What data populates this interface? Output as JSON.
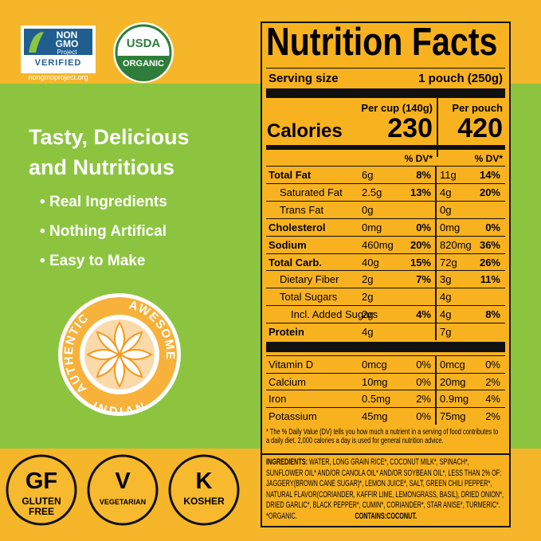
{
  "badges": {
    "nongmo": {
      "line1": "NON",
      "line2": "GMO",
      "line3": "Project",
      "line4": "VERIFIED",
      "url": "nongmoproject.org"
    },
    "usda": {
      "line1": "USDA",
      "line2": "ORGANIC"
    }
  },
  "headline": {
    "line1": "Tasty, Delicious",
    "line2": "and Nutritious"
  },
  "bullets": [
    "Real Ingredients",
    "Nothing Artifical",
    "Easy to Make"
  ],
  "seal": {
    "left": "AUTHENTIC",
    "right": "AWESOME",
    "bottom": "INDIAN"
  },
  "diet_badges": [
    {
      "mark": "GF",
      "line1": "GLUTEN",
      "line2": "FREE"
    },
    {
      "mark": "V",
      "line1": "VEGETARIAN",
      "line2": null
    },
    {
      "mark": "K",
      "line1": "KOSHER",
      "line2": null
    }
  ],
  "nutrition": {
    "title": "Nutrition Facts",
    "serving_label": "Serving size",
    "serving_value": "1 pouch (250g)",
    "col1_header": "Per cup (140g)",
    "col2_header": "Per pouch",
    "calories_label": "Calories",
    "calories": [
      "230",
      "420"
    ],
    "dv_header": "% DV*",
    "rows": [
      {
        "name": "Total Fat",
        "a1": "6g",
        "d1": "8%",
        "a2": "11g",
        "d2": "14%",
        "bold": true,
        "level": 0
      },
      {
        "name": "Saturated Fat",
        "a1": "2.5g",
        "d1": "13%",
        "a2": "4g",
        "d2": "20%",
        "bold": false,
        "level": 1
      },
      {
        "name": "Trans Fat",
        "a1": "0g",
        "d1": null,
        "a2": "0g",
        "d2": null,
        "bold": false,
        "level": 1
      },
      {
        "name": "Cholesterol",
        "a1": "0mg",
        "d1": "0%",
        "a2": "0mg",
        "d2": "0%",
        "bold": true,
        "level": 0
      },
      {
        "name": "Sodium",
        "a1": "460mg",
        "d1": "20%",
        "a2": "820mg",
        "d2": "36%",
        "bold": true,
        "level": 0
      },
      {
        "name": "Total Carb.",
        "a1": "40g",
        "d1": "15%",
        "a2": "72g",
        "d2": "26%",
        "bold": true,
        "level": 0
      },
      {
        "name": "Dietary Fiber",
        "a1": "2g",
        "d1": "7%",
        "a2": "3g",
        "d2": "11%",
        "bold": false,
        "level": 1
      },
      {
        "name": "Total Sugars",
        "a1": "2g",
        "d1": null,
        "a2": "4g",
        "d2": null,
        "bold": false,
        "level": 1
      },
      {
        "name": "Incl. Added Sugars",
        "a1": "2g",
        "d1": "4%",
        "a2": "4g",
        "d2": "8%",
        "bold": false,
        "level": 2
      },
      {
        "name": "Protein",
        "a1": "4g",
        "d1": null,
        "a2": "7g",
        "d2": null,
        "bold": true,
        "level": 0
      }
    ],
    "vitamins": [
      {
        "name": "Vitamin D",
        "a1": "0mcg",
        "d1": "0%",
        "a2": "0mcg",
        "d2": "0%"
      },
      {
        "name": "Calcium",
        "a1": "10mg",
        "d1": "0%",
        "a2": "20mg",
        "d2": "2%"
      },
      {
        "name": "Iron",
        "a1": "0.5mg",
        "d1": "2%",
        "a2": "0.9mg",
        "d2": "4%"
      },
      {
        "name": "Potassium",
        "a1": "45mg",
        "d1": "0%",
        "a2": "75mg",
        "d2": "2%"
      }
    ],
    "footnote": [
      "* The % Daily Value (DV) tells you how much a nutrient in a serving of food contributes to",
      "a daily diet. 2,000 calories a day is used for general nutrition advice."
    ]
  },
  "ingredients": {
    "label": "INGREDIENTS:",
    "lines": [
      "WATER, LONG GRAIN RICE*, COCONUT MILK*, SPINACH*,",
      "SUNFLOWER OIL* AND/OR CANOLA OIL* AND/OR SOYBEAN OIL*, LESS THAN 2% OF:",
      "JAGGERY(BROWN CANE SUGAR)*, LEMON JUICE*, SALT, GREEN CHILI PEPPER*,",
      "NATURAL FLAVOR(CORIANDER, KAFFIR LIME, LEMONGRASS, BASIL), DRIED ONION*,",
      "DRIED GARLIC*, BLACK PEPPER*, CUMIN*, CORIANDER*, STAR ANISE*, TURMERIC*."
    ],
    "organic": "*ORGANIC.",
    "contains": "CONTAINS:COCONUT."
  }
}
